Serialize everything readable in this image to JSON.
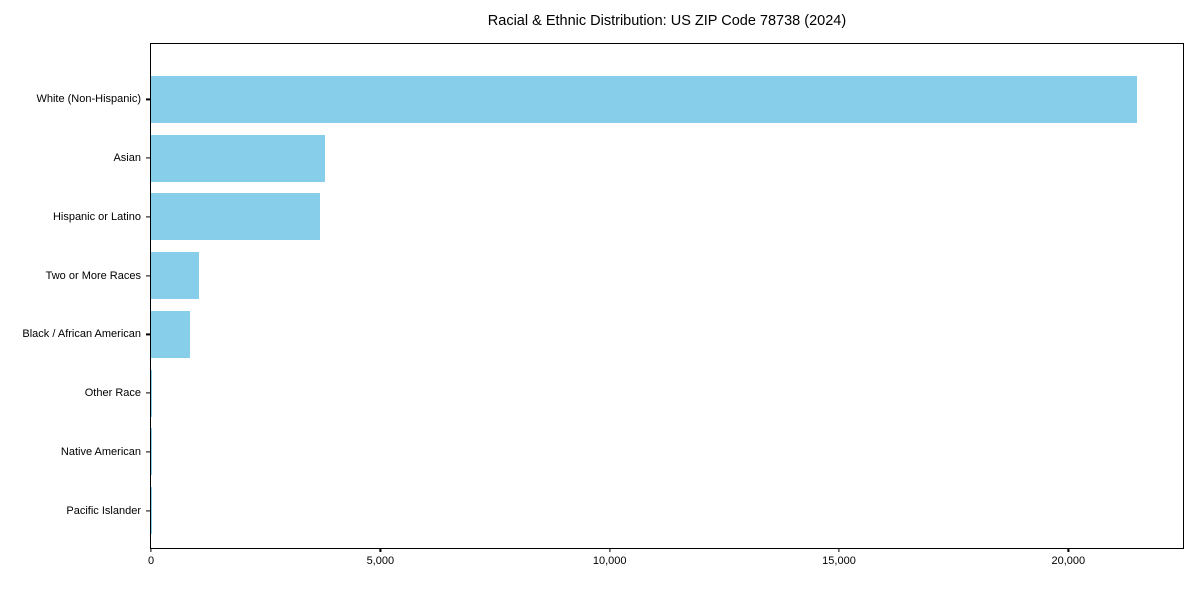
{
  "chart_data": {
    "type": "bar",
    "orientation": "horizontal",
    "title": "Racial & Ethnic Distribution: US ZIP Code 78738 (2024)",
    "categories": [
      "White (Non-Hispanic)",
      "Asian",
      "Hispanic or Latino",
      "Two or More Races",
      "Black / African American",
      "Other Race",
      "Native American",
      "Pacific Islander"
    ],
    "values": [
      21500,
      3800,
      3680,
      1050,
      860,
      25,
      12,
      5
    ],
    "xlabel": "",
    "ylabel": "",
    "xlim": [
      0,
      22500
    ],
    "x_ticks": [
      0,
      5000,
      10000,
      15000,
      20000
    ],
    "x_tick_labels": [
      "0",
      "5,000",
      "10,000",
      "15,000",
      "20,000"
    ],
    "bar_color": "#87CEEB",
    "text_color": "#000000",
    "grid": false,
    "legend": null
  }
}
